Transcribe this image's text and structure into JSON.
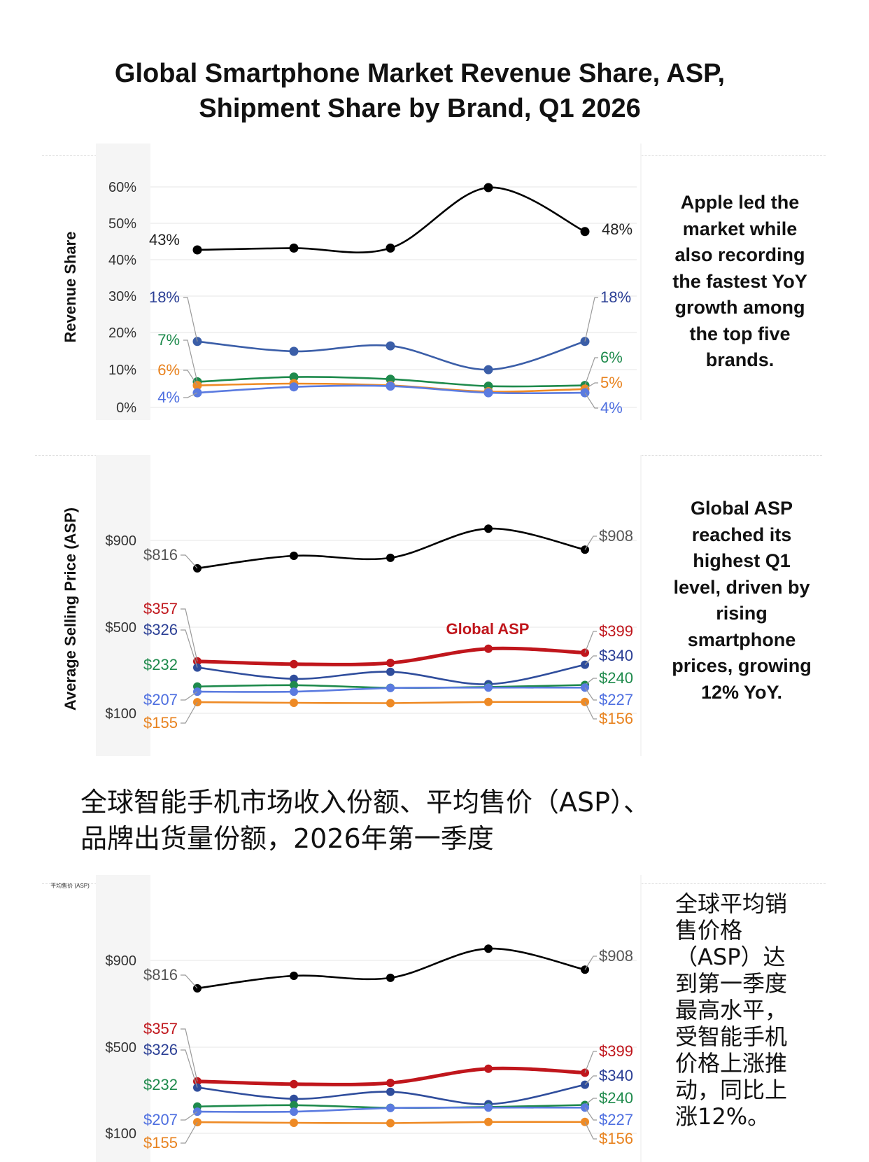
{
  "title_line1": "Global Smartphone Market Revenue Share, ASP,",
  "title_line2": "Shipment Share by Brand, Q1 2026",
  "revenue_note": "Apple led the market while also recording the fastest YoY growth among the top five brands.",
  "asp_note": "Global ASP reached its highest Q1 level, driven by rising smartphone prices, growing 12% YoY.",
  "cn_title_line1": "全球智能手机市场收入份额、平均售价（ASP）、",
  "cn_title_line2": "品牌出货量份额，2026年第一季度",
  "cn_note": "全球平均销售价格（ASP）达到第一季度最高水平，受智能手机价格上涨推动，同比上涨12%。",
  "chart_data": [
    {
      "type": "line",
      "title": "",
      "ylabel": "Revenue Share",
      "yticks": [
        "60%",
        "50%",
        "40%",
        "30%",
        "20%",
        "10%",
        "0%"
      ],
      "ylim": [
        0,
        60
      ],
      "x": [
        1,
        2,
        3,
        4,
        5
      ],
      "series": [
        {
          "color": "#000000",
          "values": [
            43,
            43.5,
            43.5,
            60,
            48
          ],
          "start_label": "43%",
          "end_label": "48%",
          "label_color": "#222222"
        },
        {
          "color": "#3b5ea8",
          "values": [
            18,
            15.3,
            16.8,
            10.3,
            18
          ],
          "start_label": "18%",
          "end_label": "18%",
          "label_color": "#2b3f95"
        },
        {
          "color": "#1e8a4c",
          "values": [
            7,
            8.3,
            7.7,
            5.8,
            6
          ],
          "start_label": "7%",
          "end_label": "6%",
          "label_color": "#1e8a4c"
        },
        {
          "color": "#ee8a25",
          "values": [
            6,
            6.5,
            6,
            4.3,
            5
          ],
          "start_label": "6%",
          "end_label": "5%",
          "label_color": "#e8821e"
        },
        {
          "color": "#5b7be0",
          "values": [
            4,
            5.6,
            5.8,
            4,
            4
          ],
          "start_label": "4%",
          "end_label": "4%",
          "label_color": "#4e6fe0"
        }
      ]
    },
    {
      "type": "line",
      "title": "",
      "ylabel": "Average Selling Price (ASP)",
      "yticks": [
        "$900",
        "$500",
        "$100"
      ],
      "ylim": [
        100,
        900
      ],
      "x": [
        1,
        2,
        3,
        4,
        5
      ],
      "annotation": "Global ASP",
      "series": [
        {
          "color": "#000000",
          "values": [
            816,
            878,
            868,
            1012,
            908
          ],
          "start_label": "$816",
          "end_label": "$908",
          "label_color": "#555555"
        },
        {
          "color": "#c0161c",
          "name": "Global ASP",
          "values": [
            357,
            343,
            349,
            419,
            399
          ],
          "start_label": "$357",
          "end_label": "$399",
          "label_color": "#c0161c"
        },
        {
          "color": "#2f4d9c",
          "values": [
            326,
            270,
            305,
            244,
            340
          ],
          "start_label": "$326",
          "end_label": "$340",
          "label_color": "#2b3f95"
        },
        {
          "color": "#1e8a4c",
          "values": [
            232,
            239,
            226,
            230,
            240
          ],
          "start_label": "$232",
          "end_label": "$240",
          "label_color": "#1e8a4c"
        },
        {
          "color": "#5b7be0",
          "values": [
            207,
            207,
            225,
            227,
            227
          ],
          "start_label": "$207",
          "end_label": "$227",
          "label_color": "#4e6fe0"
        },
        {
          "color": "#ee8a25",
          "values": [
            155,
            152,
            150,
            156,
            156
          ],
          "start_label": "$155",
          "end_label": "$156",
          "label_color": "#e8821e"
        }
      ]
    },
    {
      "type": "line",
      "title": "",
      "ylabel": "平均售价 (ASP)",
      "yticks": [
        "$900",
        "$500",
        "$100"
      ],
      "ylim": [
        100,
        900
      ],
      "x": [
        1,
        2,
        3,
        4,
        5
      ],
      "series": [
        {
          "color": "#000000",
          "values": [
            816,
            878,
            868,
            1012,
            908
          ],
          "start_label": "$816",
          "end_label": "$908",
          "label_color": "#555555"
        },
        {
          "color": "#c0161c",
          "values": [
            357,
            343,
            349,
            419,
            399
          ],
          "start_label": "$357",
          "end_label": "$399",
          "label_color": "#c0161c"
        },
        {
          "color": "#2f4d9c",
          "values": [
            326,
            270,
            305,
            244,
            340
          ],
          "start_label": "$326",
          "end_label": "$340",
          "label_color": "#2b3f95"
        },
        {
          "color": "#1e8a4c",
          "values": [
            232,
            239,
            226,
            230,
            240
          ],
          "start_label": "$232",
          "end_label": "$240",
          "label_color": "#1e8a4c"
        },
        {
          "color": "#5b7be0",
          "values": [
            207,
            207,
            225,
            227,
            227
          ],
          "start_label": "$207",
          "end_label": "$227",
          "label_color": "#4e6fe0"
        },
        {
          "color": "#ee8a25",
          "values": [
            155,
            152,
            150,
            156,
            156
          ],
          "start_label": "$155",
          "end_label": "$156",
          "label_color": "#e8821e"
        }
      ]
    }
  ]
}
